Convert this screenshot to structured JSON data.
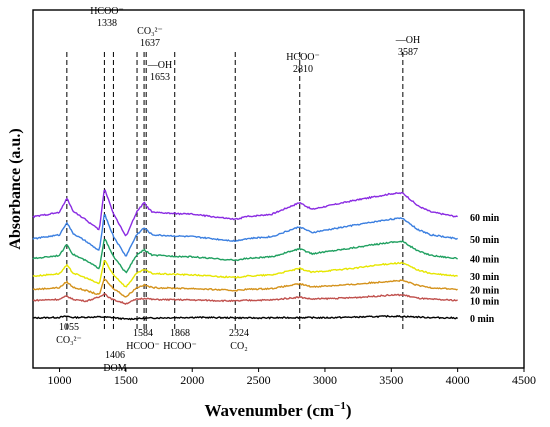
{
  "chart_data": {
    "type": "line",
    "xlabel": "Wavenumber (cm",
    "xlabel_sup": "−1",
    "xlabel_end": ")",
    "ylabel": "Absorbance (a.u.)",
    "xlim": [
      800,
      4500
    ],
    "xticks": [
      1000,
      1500,
      2000,
      2500,
      3000,
      3500,
      4000,
      4500
    ],
    "grid": false,
    "series": [
      {
        "name": "0 min",
        "color": "#000000",
        "offset": 0,
        "points": [
          [
            800,
            0.0
          ],
          [
            1000,
            0.3
          ],
          [
            1055,
            0.8
          ],
          [
            1100,
            0.2
          ],
          [
            1300,
            0.5
          ],
          [
            1400,
            0.2
          ],
          [
            1500,
            -0.5
          ],
          [
            1700,
            0.0
          ],
          [
            2000,
            0.3
          ],
          [
            2300,
            0.1
          ],
          [
            2500,
            0.0
          ],
          [
            2800,
            0.2
          ],
          [
            3000,
            0.1
          ],
          [
            3500,
            0.8
          ],
          [
            3600,
            0.7
          ],
          [
            3800,
            0.2
          ],
          [
            4000,
            0.0
          ]
        ]
      },
      {
        "name": "10 min",
        "color": "#c0504d",
        "offset": 8,
        "points": [
          [
            800,
            0.0
          ],
          [
            1000,
            0.5
          ],
          [
            1055,
            2.0
          ],
          [
            1100,
            0.5
          ],
          [
            1200,
            -0.3
          ],
          [
            1300,
            1.5
          ],
          [
            1338,
            3.2
          ],
          [
            1380,
            1.0
          ],
          [
            1406,
            0.3
          ],
          [
            1500,
            -1.5
          ],
          [
            1580,
            0.5
          ],
          [
            1650,
            1.0
          ],
          [
            1700,
            0.4
          ],
          [
            1900,
            0.3
          ],
          [
            2000,
            0.2
          ],
          [
            2324,
            -0.3
          ],
          [
            2400,
            0.0
          ],
          [
            2600,
            0.2
          ],
          [
            2810,
            1.5
          ],
          [
            2900,
            0.6
          ],
          [
            3200,
            1.2
          ],
          [
            3500,
            2.4
          ],
          [
            3587,
            2.5
          ],
          [
            3700,
            1.0
          ],
          [
            3800,
            0.5
          ],
          [
            4000,
            0.0
          ]
        ]
      },
      {
        "name": "20 min",
        "color": "#d4921c",
        "offset": 13,
        "points": [
          [
            800,
            0.0
          ],
          [
            1000,
            0.8
          ],
          [
            1055,
            3.5
          ],
          [
            1100,
            1.0
          ],
          [
            1200,
            -0.5
          ],
          [
            1300,
            -2.5
          ],
          [
            1338,
            5.0
          ],
          [
            1380,
            2.0
          ],
          [
            1406,
            0.5
          ],
          [
            1500,
            -3.5
          ],
          [
            1580,
            0.8
          ],
          [
            1637,
            2.0
          ],
          [
            1700,
            0.8
          ],
          [
            1900,
            0.5
          ],
          [
            2000,
            0.4
          ],
          [
            2324,
            -0.5
          ],
          [
            2400,
            0.0
          ],
          [
            2600,
            0.4
          ],
          [
            2810,
            2.5
          ],
          [
            2900,
            1.2
          ],
          [
            3200,
            2.2
          ],
          [
            3500,
            3.8
          ],
          [
            3587,
            4.0
          ],
          [
            3700,
            1.8
          ],
          [
            3800,
            0.8
          ],
          [
            4000,
            0.0
          ]
        ]
      },
      {
        "name": "30 min",
        "color": "#e6e600",
        "offset": 19,
        "points": [
          [
            800,
            0.0
          ],
          [
            1000,
            1.2
          ],
          [
            1055,
            5.0
          ],
          [
            1100,
            1.5
          ],
          [
            1200,
            -0.8
          ],
          [
            1300,
            -3.5
          ],
          [
            1338,
            7.5
          ],
          [
            1380,
            3.0
          ],
          [
            1406,
            0.8
          ],
          [
            1500,
            -5.0
          ],
          [
            1580,
            1.2
          ],
          [
            1637,
            3.0
          ],
          [
            1700,
            1.2
          ],
          [
            1900,
            0.8
          ],
          [
            2000,
            0.6
          ],
          [
            2324,
            -0.6
          ],
          [
            2400,
            0.0
          ],
          [
            2600,
            0.6
          ],
          [
            2810,
            3.5
          ],
          [
            2900,
            1.8
          ],
          [
            3200,
            3.5
          ],
          [
            3500,
            5.8
          ],
          [
            3587,
            6.0
          ],
          [
            3700,
            2.8
          ],
          [
            3800,
            1.2
          ],
          [
            4000,
            0.0
          ]
        ]
      },
      {
        "name": "40 min",
        "color": "#20a060",
        "offset": 27,
        "points": [
          [
            800,
            0.0
          ],
          [
            1000,
            1.5
          ],
          [
            1055,
            6.5
          ],
          [
            1100,
            2.0
          ],
          [
            1200,
            -1.0
          ],
          [
            1300,
            -4.5
          ],
          [
            1338,
            9.5
          ],
          [
            1380,
            4.0
          ],
          [
            1406,
            1.0
          ],
          [
            1500,
            -6.5
          ],
          [
            1580,
            1.5
          ],
          [
            1637,
            4.0
          ],
          [
            1700,
            1.5
          ],
          [
            1900,
            1.0
          ],
          [
            2000,
            0.8
          ],
          [
            2324,
            -0.8
          ],
          [
            2400,
            0.0
          ],
          [
            2600,
            0.8
          ],
          [
            2810,
            4.5
          ],
          [
            2900,
            2.2
          ],
          [
            3200,
            4.8
          ],
          [
            3500,
            7.5
          ],
          [
            3587,
            7.8
          ],
          [
            3700,
            3.5
          ],
          [
            3800,
            1.5
          ],
          [
            4000,
            0.0
          ]
        ]
      },
      {
        "name": "50 min",
        "color": "#3b7fe0",
        "offset": 36,
        "points": [
          [
            800,
            0.0
          ],
          [
            1000,
            1.8
          ],
          [
            1055,
            7.5
          ],
          [
            1100,
            2.5
          ],
          [
            1200,
            -1.2
          ],
          [
            1300,
            -5.5
          ],
          [
            1338,
            11.5
          ],
          [
            1380,
            5.0
          ],
          [
            1406,
            1.2
          ],
          [
            1500,
            -8.0
          ],
          [
            1580,
            1.8
          ],
          [
            1637,
            5.0
          ],
          [
            1700,
            1.8
          ],
          [
            1900,
            1.2
          ],
          [
            2000,
            1.0
          ],
          [
            2324,
            -1.0
          ],
          [
            2400,
            0.0
          ],
          [
            2600,
            1.0
          ],
          [
            2810,
            5.5
          ],
          [
            2900,
            2.8
          ],
          [
            3200,
            6.0
          ],
          [
            3500,
            9.0
          ],
          [
            3587,
            9.3
          ],
          [
            3700,
            4.2
          ],
          [
            3800,
            1.8
          ],
          [
            4000,
            0.0
          ]
        ]
      },
      {
        "name": "60 min",
        "color": "#8a2be2",
        "offset": 46,
        "points": [
          [
            800,
            0.0
          ],
          [
            1000,
            2.0
          ],
          [
            1055,
            8.5
          ],
          [
            1100,
            2.8
          ],
          [
            1200,
            -1.5
          ],
          [
            1300,
            -6.0
          ],
          [
            1338,
            13.0
          ],
          [
            1380,
            6.0
          ],
          [
            1406,
            1.5
          ],
          [
            1500,
            -9.0
          ],
          [
            1580,
            2.0
          ],
          [
            1637,
            6.5
          ],
          [
            1653,
            5.0
          ],
          [
            1700,
            2.0
          ],
          [
            1900,
            1.4
          ],
          [
            2000,
            1.2
          ],
          [
            2324,
            -1.2
          ],
          [
            2400,
            0.0
          ],
          [
            2600,
            1.2
          ],
          [
            2810,
            6.5
          ],
          [
            2900,
            3.4
          ],
          [
            3200,
            7.2
          ],
          [
            3500,
            10.5
          ],
          [
            3587,
            10.8
          ],
          [
            3700,
            5.0
          ],
          [
            3800,
            2.2
          ],
          [
            4000,
            0.0
          ]
        ]
      }
    ],
    "annotations_top": [
      {
        "label": "HCOO⁻",
        "value": "1338",
        "x": 1338
      },
      {
        "label": "CO₃²⁻",
        "value": "1637",
        "x": 1637
      },
      {
        "label": "—OH",
        "value": "1653",
        "x": 1653
      },
      {
        "label": "HCOO⁻",
        "value": "2810",
        "x": 2810
      },
      {
        "label": "—OH",
        "value": "3587",
        "x": 3587
      }
    ],
    "annotations_bottom": [
      {
        "value": "1055",
        "label": "CO₃²⁻",
        "x": 1055
      },
      {
        "value": "1406",
        "label": "DOM",
        "x": 1406
      },
      {
        "value": "1584",
        "label": "HCOO⁻",
        "x": 1584
      },
      {
        "value": "1868",
        "label": "HCOO⁻",
        "x": 1868
      },
      {
        "value": "2324",
        "label": "CO₂",
        "x": 2324
      }
    ],
    "dashed_lines": [
      1055,
      1338,
      1406,
      1584,
      1637,
      1653,
      1868,
      2324,
      2810,
      3587
    ]
  }
}
